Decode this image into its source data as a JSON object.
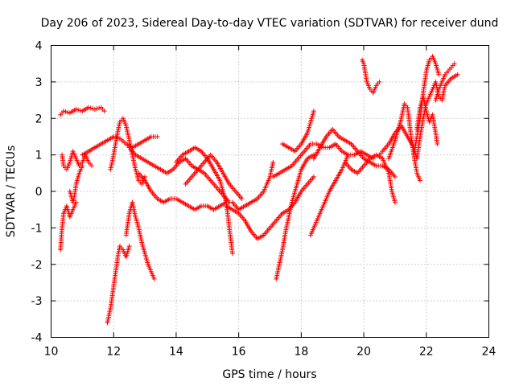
{
  "chart_data": {
    "type": "scatter",
    "title": "Day 206 of 2023, Sidereal Day-to-day VTEC variation (SDTVAR) for receiver dund",
    "xlabel": "GPS time / hours",
    "ylabel": "SDTVAR / TECUs",
    "xlim": [
      10,
      24
    ],
    "ylim": [
      -4,
      4
    ],
    "xticks": [
      10,
      12,
      14,
      16,
      18,
      20,
      22,
      24
    ],
    "yticks": [
      -4,
      -3,
      -2,
      -1,
      0,
      1,
      2,
      3,
      4
    ],
    "xtick_labels": [
      "10",
      "12",
      "14",
      "16",
      "18",
      "20",
      "22",
      "24"
    ],
    "ytick_labels": [
      "-4",
      "-3",
      "-2",
      "-1",
      "0",
      "1",
      "2",
      "3",
      "4"
    ],
    "grid": true,
    "marker": "+",
    "color": "#ff0000",
    "series": [
      {
        "name": "s1",
        "x": [
          10.3,
          10.4,
          10.6,
          10.8,
          11.0,
          11.2,
          11.4,
          11.6,
          11.7
        ],
        "y": [
          2.1,
          2.2,
          2.15,
          2.25,
          2.2,
          2.3,
          2.25,
          2.3,
          2.2
        ]
      },
      {
        "name": "s2",
        "x": [
          10.35,
          10.4,
          10.5,
          10.6,
          10.7,
          10.8,
          10.9,
          11.0,
          11.1,
          11.2,
          11.3
        ],
        "y": [
          1.0,
          0.7,
          0.6,
          0.8,
          1.1,
          0.9,
          0.7,
          0.8,
          1.0,
          0.8,
          0.7
        ]
      },
      {
        "name": "s3",
        "x": [
          10.3,
          10.35,
          10.4,
          10.5,
          10.6,
          10.7,
          10.8
        ],
        "y": [
          -1.6,
          -1.0,
          -0.6,
          -0.4,
          -0.7,
          -0.5,
          -0.3
        ]
      },
      {
        "name": "s4",
        "x": [
          10.6,
          10.7,
          10.75,
          10.8,
          10.9,
          11.0
        ],
        "y": [
          0.0,
          -0.3,
          -0.1,
          0.2,
          0.5,
          0.7
        ]
      },
      {
        "name": "s5",
        "x": [
          11.0,
          11.2,
          11.4,
          11.6,
          11.8,
          12.0,
          12.2,
          12.4,
          12.6,
          12.8,
          13.0,
          13.2,
          13.4
        ],
        "y": [
          1.0,
          1.1,
          1.2,
          1.3,
          1.4,
          1.5,
          1.45,
          1.3,
          1.2,
          1.3,
          1.4,
          1.5,
          1.5
        ]
      },
      {
        "name": "s6",
        "x": [
          11.8,
          11.9,
          12.0,
          12.1,
          12.15,
          12.2,
          12.3,
          12.4,
          12.5
        ],
        "y": [
          -3.6,
          -3.2,
          -2.6,
          -2.0,
          -1.7,
          -1.5,
          -1.6,
          -1.8,
          -1.5
        ]
      },
      {
        "name": "s7",
        "x": [
          12.4,
          12.5,
          12.6,
          12.7,
          12.8,
          12.9,
          13.0,
          13.1,
          13.2,
          13.3
        ],
        "y": [
          -1.2,
          -0.6,
          -0.3,
          -0.7,
          -1.0,
          -1.4,
          -1.7,
          -2.0,
          -2.2,
          -2.4
        ]
      },
      {
        "name": "s8",
        "x": [
          11.9,
          12.0,
          12.1,
          12.2,
          12.3,
          12.4,
          12.5,
          12.6,
          12.7,
          12.8,
          12.9,
          13.0
        ],
        "y": [
          0.6,
          1.0,
          1.5,
          1.9,
          2.0,
          1.8,
          1.4,
          1.0,
          0.6,
          0.3,
          0.2,
          0.4
        ]
      },
      {
        "name": "s9",
        "x": [
          12.8,
          13.0,
          13.2,
          13.4,
          13.6,
          13.8,
          14.0,
          14.2,
          14.4,
          14.6,
          14.8,
          15.0,
          15.2,
          15.4,
          15.6
        ],
        "y": [
          0.5,
          0.3,
          0.0,
          -0.2,
          -0.3,
          -0.2,
          -0.2,
          -0.3,
          -0.4,
          -0.5,
          -0.4,
          -0.4,
          -0.5,
          -0.4,
          -0.3
        ]
      },
      {
        "name": "s10",
        "x": [
          12.5,
          12.7,
          12.9,
          13.1,
          13.3,
          13.5,
          13.7,
          13.9,
          14.1,
          14.3,
          14.5,
          14.7,
          14.9,
          15.1,
          15.3,
          15.5,
          15.7
        ],
        "y": [
          1.2,
          1.0,
          0.9,
          0.8,
          0.7,
          0.6,
          0.5,
          0.6,
          0.8,
          0.9,
          0.7,
          0.6,
          0.5,
          0.3,
          0.1,
          -0.1,
          -0.3
        ]
      },
      {
        "name": "s11",
        "x": [
          14.0,
          14.2,
          14.4,
          14.6,
          14.8,
          15.0,
          15.2,
          15.4,
          15.6,
          15.7,
          15.8
        ],
        "y": [
          0.8,
          1.0,
          1.1,
          1.2,
          1.1,
          0.9,
          0.6,
          0.3,
          -0.3,
          -1.0,
          -1.7
        ]
      },
      {
        "name": "s12",
        "x": [
          14.3,
          14.5,
          14.7,
          14.9,
          15.1,
          15.3,
          15.5,
          15.7,
          15.9,
          16.1
        ],
        "y": [
          0.2,
          0.4,
          0.6,
          0.8,
          1.0,
          0.8,
          0.5,
          0.2,
          0.0,
          -0.2
        ]
      },
      {
        "name": "s13",
        "x": [
          15.6,
          15.8,
          16.0,
          16.2,
          16.4,
          16.6,
          16.8,
          17.0,
          17.2,
          17.4,
          17.6,
          17.8,
          18.0,
          18.2,
          18.4
        ],
        "y": [
          -0.4,
          -0.5,
          -0.6,
          -0.8,
          -1.1,
          -1.3,
          -1.2,
          -1.0,
          -0.8,
          -0.6,
          -0.5,
          -0.3,
          0.0,
          0.2,
          0.4
        ]
      },
      {
        "name": "s14",
        "x": [
          15.8,
          16.0,
          16.2,
          16.4,
          16.6,
          16.8,
          17.0,
          17.1
        ],
        "y": [
          -0.3,
          -0.5,
          -0.4,
          -0.3,
          -0.2,
          0.0,
          0.4,
          0.8
        ]
      },
      {
        "name": "s15",
        "x": [
          17.1,
          17.3,
          17.5,
          17.7,
          17.9,
          18.1,
          18.3,
          18.5,
          18.7,
          18.9,
          19.1,
          19.3,
          19.5,
          19.7,
          19.9,
          20.1,
          20.3
        ],
        "y": [
          0.4,
          0.5,
          0.6,
          0.7,
          0.9,
          1.1,
          1.3,
          1.3,
          1.2,
          1.2,
          1.3,
          1.1,
          1.0,
          1.0,
          1.1,
          1.0,
          0.9
        ]
      },
      {
        "name": "s16",
        "x": [
          17.2,
          17.3,
          17.4,
          17.5,
          17.6,
          17.7,
          17.8,
          17.9,
          18.0,
          18.2,
          18.4
        ],
        "y": [
          -2.4,
          -2.0,
          -1.6,
          -1.1,
          -0.7,
          -0.3,
          0.0,
          0.3,
          0.6,
          0.9,
          1.0
        ]
      },
      {
        "name": "s17",
        "x": [
          17.4,
          17.6,
          17.8,
          18.0,
          18.2,
          18.3,
          18.4
        ],
        "y": [
          1.3,
          1.2,
          1.1,
          1.3,
          1.6,
          1.9,
          2.2
        ]
      },
      {
        "name": "s18",
        "x": [
          18.3,
          18.5,
          18.7,
          18.9,
          19.1,
          19.3,
          19.5
        ],
        "y": [
          -1.2,
          -0.8,
          -0.4,
          0.0,
          0.3,
          0.6,
          1.0
        ]
      },
      {
        "name": "s19",
        "x": [
          18.4,
          18.6,
          18.8,
          19.0,
          19.2,
          19.4,
          19.6,
          19.8,
          20.0,
          20.2,
          20.4,
          20.6,
          20.8,
          21.0
        ],
        "y": [
          0.9,
          1.2,
          1.5,
          1.7,
          1.5,
          1.4,
          1.3,
          1.1,
          0.9,
          0.8,
          0.7,
          0.7,
          0.6,
          0.4
        ]
      },
      {
        "name": "s20",
        "x": [
          19.4,
          19.6,
          19.8,
          20.0,
          20.2,
          20.4,
          20.6,
          20.8,
          20.9,
          21.0
        ],
        "y": [
          0.8,
          0.6,
          0.5,
          0.7,
          0.9,
          1.0,
          0.9,
          0.5,
          0.0,
          -0.3
        ]
      },
      {
        "name": "s21",
        "x": [
          19.95,
          20.0,
          20.1,
          20.2,
          20.3,
          20.4,
          20.5
        ],
        "y": [
          3.6,
          3.5,
          3.0,
          2.8,
          2.7,
          2.9,
          3.0
        ]
      },
      {
        "name": "s22",
        "x": [
          20.5,
          20.6,
          20.8,
          21.0,
          21.2,
          21.4,
          21.6,
          21.7,
          21.8,
          21.9,
          22.0,
          22.1,
          22.2,
          22.3,
          22.4,
          22.5,
          22.6,
          22.8,
          23.0
        ],
        "y": [
          1.0,
          1.1,
          1.3,
          1.6,
          1.8,
          1.5,
          1.2,
          0.9,
          1.5,
          2.0,
          2.4,
          2.6,
          2.8,
          3.0,
          2.6,
          2.5,
          2.9,
          3.1,
          3.2
        ]
      },
      {
        "name": "s23",
        "x": [
          20.8,
          21.0,
          21.2,
          21.3,
          21.4,
          21.5,
          21.6,
          21.7,
          21.8
        ],
        "y": [
          0.9,
          1.4,
          2.0,
          2.4,
          2.3,
          1.6,
          1.0,
          0.5,
          0.3
        ]
      },
      {
        "name": "s24",
        "x": [
          21.7,
          21.8,
          21.9,
          22.0,
          22.1,
          22.2,
          22.3,
          22.35
        ],
        "y": [
          1.7,
          2.3,
          2.6,
          2.2,
          1.9,
          2.1,
          1.6,
          1.3
        ]
      },
      {
        "name": "s25",
        "x": [
          21.6,
          21.7,
          21.8,
          21.9,
          22.0,
          22.1,
          22.2,
          22.3,
          22.4
        ],
        "y": [
          1.0,
          1.5,
          2.0,
          2.7,
          3.3,
          3.6,
          3.7,
          3.5,
          3.2
        ]
      },
      {
        "name": "s26",
        "x": [
          22.3,
          22.4,
          22.5,
          22.6,
          22.7,
          22.8,
          22.9
        ],
        "y": [
          2.5,
          2.8,
          3.0,
          3.2,
          3.3,
          3.4,
          3.5
        ]
      }
    ]
  }
}
